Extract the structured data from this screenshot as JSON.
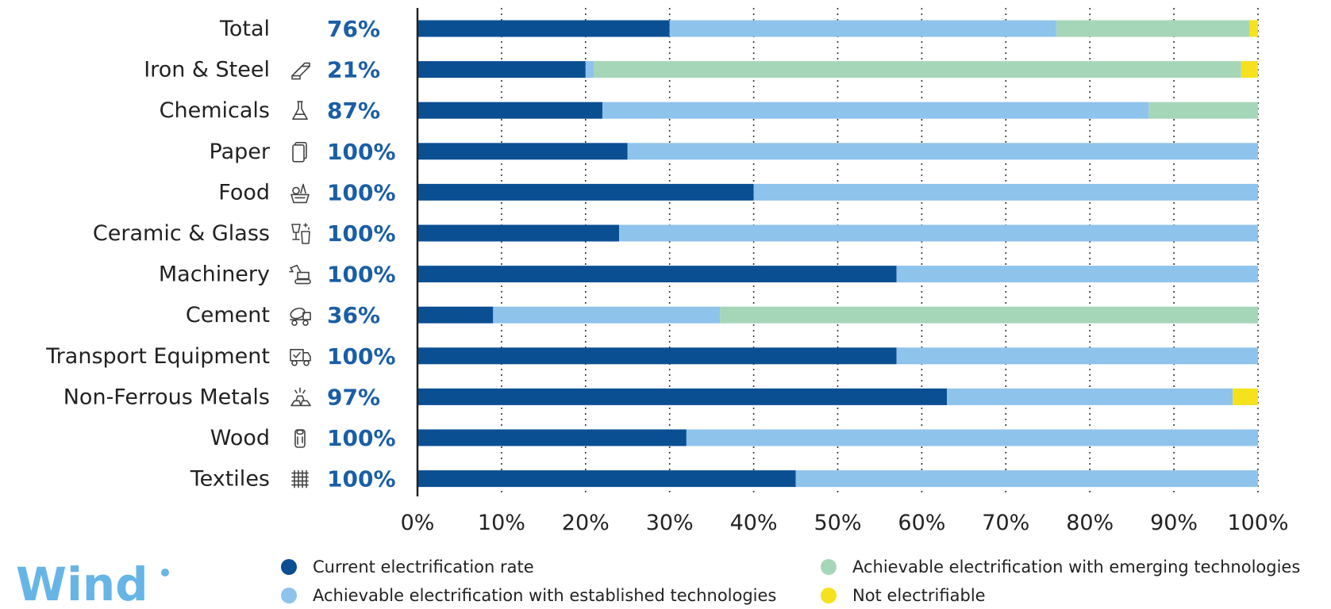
{
  "colors": {
    "current": "#0b4f93",
    "established": "#8ec3ec",
    "emerging": "#a6d6b8",
    "not_electrifiable": "#f5e21c",
    "percent_text": "#1a5ea5",
    "logo": "#67b5e6"
  },
  "logo": {
    "text": "Wind"
  },
  "chart_data": {
    "type": "bar",
    "orientation": "horizontal",
    "stacked": true,
    "categories": [
      "Total",
      "Iron & Steel",
      "Chemicals",
      "Paper",
      "Food",
      "Ceramic & Glass",
      "Machinery",
      "Cement",
      "Transport Equipment",
      "Non-Ferrous Metals",
      "Wood",
      "Textiles"
    ],
    "category_icons": [
      "",
      "steel-beam-icon",
      "flask-icon",
      "paper-sheets-icon",
      "food-basket-icon",
      "glassware-icon",
      "excavator-icon",
      "cement-mixer-icon",
      "delivery-truck-icon",
      "metal-ingots-icon",
      "log-icon",
      "textile-weave-icon"
    ],
    "percent_labels": [
      "76%",
      "21%",
      "87%",
      "100%",
      "100%",
      "100%",
      "100%",
      "36%",
      "100%",
      "97%",
      "100%",
      "100%"
    ],
    "series": [
      {
        "name": "Current electrification rate",
        "color_key": "current",
        "values": [
          30,
          20,
          22,
          25,
          40,
          24,
          57,
          9,
          57,
          63,
          32,
          45
        ]
      },
      {
        "name": "Achievable electrification with established technologies",
        "color_key": "established",
        "values": [
          46,
          1,
          65,
          75,
          60,
          76,
          43,
          27,
          43,
          34,
          68,
          55
        ]
      },
      {
        "name": "Achievable electrification with emerging technologies",
        "color_key": "emerging",
        "values": [
          23,
          77,
          13,
          0,
          0,
          0,
          0,
          64,
          0,
          0,
          0,
          0
        ]
      },
      {
        "name": "Not electrifiable",
        "color_key": "not_electrifiable",
        "values": [
          1,
          2,
          0,
          0,
          0,
          0,
          0,
          0,
          0,
          3,
          0,
          0
        ]
      }
    ],
    "x_ticks": [
      "0%",
      "10%",
      "20%",
      "30%",
      "40%",
      "50%",
      "60%",
      "70%",
      "80%",
      "90%",
      "100%"
    ],
    "xlim": [
      0,
      100
    ],
    "grid": "vertical dotted",
    "legend_placement": "bottom",
    "legend": [
      {
        "label": "Current electrification rate",
        "color_key": "current"
      },
      {
        "label": "Achievable electrification with emerging technologies",
        "color_key": "emerging"
      },
      {
        "label": "Achievable electrification with established technologies",
        "color_key": "established"
      },
      {
        "label": "Not electrifiable",
        "color_key": "not_electrifiable"
      }
    ]
  }
}
